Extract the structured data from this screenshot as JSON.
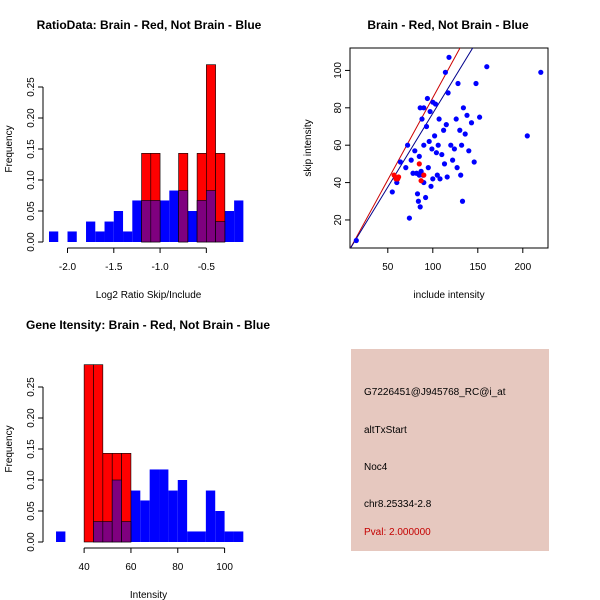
{
  "colors": {
    "red": "#ff0000",
    "blue": "#0000ff",
    "overlap": "#7f007f",
    "ref_red": "#cc0000",
    "ref_blue": "#00008b",
    "info_bg": "#e6c8bf",
    "pval": "#c40000"
  },
  "info_panel": {
    "probe_id": "G7226451@J945768_RC@i_at",
    "event_type": "altTxStart",
    "gene": "Noc4",
    "location": "chr8.25334-2.8",
    "pval": "Pval: 2.000000"
  },
  "chart_data": [
    {
      "type": "bar",
      "id": "ratio-hist",
      "title": "RatioData: Brain - Red, Not Brain - Blue",
      "xlabel": "Log2 Ratio Skip/Include",
      "ylabel": "Frequency",
      "xlim": [
        -2.2,
        -0.05
      ],
      "ylim": [
        0,
        0.3
      ],
      "xticks": [
        -2.0,
        -1.5,
        -1.0,
        -0.5
      ],
      "xtick_labels": [
        "-2.0",
        "-1.5",
        "-1.0",
        "-0.5"
      ],
      "yticks": [
        0,
        0.05,
        0.1,
        0.15,
        0.2,
        0.25
      ],
      "ytick_labels": [
        "0.00",
        "0.05",
        "0.10",
        "0.15",
        "0.20",
        "0.25"
      ],
      "bin_width": 0.1,
      "series": [
        {
          "name": "Not Brain",
          "color": "blue",
          "bins": [
            {
              "x0": -2.2,
              "v": 0.017
            },
            {
              "x0": -2.0,
              "v": 0.017
            },
            {
              "x0": -1.8,
              "v": 0.033
            },
            {
              "x0": -1.7,
              "v": 0.017
            },
            {
              "x0": -1.6,
              "v": 0.033
            },
            {
              "x0": -1.5,
              "v": 0.05
            },
            {
              "x0": -1.4,
              "v": 0.017
            },
            {
              "x0": -1.3,
              "v": 0.067
            },
            {
              "x0": -1.2,
              "v": 0.067
            },
            {
              "x0": -1.1,
              "v": 0.067
            },
            {
              "x0": -1.0,
              "v": 0.067
            },
            {
              "x0": -0.9,
              "v": 0.083
            },
            {
              "x0": -0.8,
              "v": 0.083
            },
            {
              "x0": -0.7,
              "v": 0.05
            },
            {
              "x0": -0.6,
              "v": 0.067
            },
            {
              "x0": -0.5,
              "v": 0.083
            },
            {
              "x0": -0.4,
              "v": 0.033
            },
            {
              "x0": -0.3,
              "v": 0.05
            },
            {
              "x0": -0.2,
              "v": 0.067
            }
          ]
        },
        {
          "name": "Brain",
          "color": "red",
          "bins": [
            {
              "x0": -1.2,
              "v": 0.143
            },
            {
              "x0": -1.1,
              "v": 0.143
            },
            {
              "x0": -0.8,
              "v": 0.143
            },
            {
              "x0": -0.6,
              "v": 0.143
            },
            {
              "x0": -0.5,
              "v": 0.286
            },
            {
              "x0": -0.4,
              "v": 0.143
            }
          ]
        }
      ]
    },
    {
      "type": "scatter",
      "id": "intensity-scatter",
      "title": "Brain - Red, Not Brain - Blue",
      "xlabel": "include intensity",
      "ylabel": "skip intensity",
      "xlim": [
        8,
        228
      ],
      "ylim": [
        5,
        112
      ],
      "xticks": [
        50,
        100,
        150,
        200
      ],
      "xtick_labels": [
        "50",
        "100",
        "150",
        "200"
      ],
      "yticks": [
        20,
        40,
        60,
        80,
        100
      ],
      "ytick_labels": [
        "20",
        "40",
        "60",
        "80",
        "100"
      ],
      "series": [
        {
          "name": "Not Brain",
          "color": "blue",
          "points": [
            [
              15,
              9
            ],
            [
              55,
              35
            ],
            [
              60,
              40
            ],
            [
              64,
              51
            ],
            [
              70,
              48
            ],
            [
              72,
              60
            ],
            [
              74,
              21
            ],
            [
              76,
              52
            ],
            [
              78,
              45
            ],
            [
              80,
              57
            ],
            [
              82,
              45
            ],
            [
              83,
              34
            ],
            [
              84,
              30
            ],
            [
              85,
              44
            ],
            [
              85,
              54
            ],
            [
              86,
              27
            ],
            [
              86,
              80
            ],
            [
              87,
              46
            ],
            [
              88,
              74
            ],
            [
              89,
              44
            ],
            [
              90,
              40
            ],
            [
              90,
              60
            ],
            [
              90,
              80
            ],
            [
              92,
              32
            ],
            [
              93,
              70
            ],
            [
              94,
              85
            ],
            [
              95,
              48
            ],
            [
              96,
              62
            ],
            [
              97,
              78
            ],
            [
              98,
              38
            ],
            [
              99,
              58
            ],
            [
              100,
              83
            ],
            [
              100,
              42
            ],
            [
              102,
              65
            ],
            [
              103,
              82
            ],
            [
              104,
              56
            ],
            [
              105,
              44
            ],
            [
              106,
              60
            ],
            [
              107,
              74
            ],
            [
              108,
              42
            ],
            [
              110,
              55
            ],
            [
              112,
              68
            ],
            [
              113,
              50
            ],
            [
              114,
              99
            ],
            [
              115,
              71
            ],
            [
              116,
              43
            ],
            [
              117,
              88
            ],
            [
              118,
              107
            ],
            [
              120,
              60
            ],
            [
              122,
              52
            ],
            [
              124,
              58
            ],
            [
              126,
              74
            ],
            [
              127,
              48
            ],
            [
              128,
              93
            ],
            [
              130,
              68
            ],
            [
              131,
              44
            ],
            [
              132,
              60
            ],
            [
              133,
              30
            ],
            [
              134,
              80
            ],
            [
              136,
              66
            ],
            [
              138,
              76
            ],
            [
              140,
              57
            ],
            [
              143,
              72
            ],
            [
              146,
              51
            ],
            [
              148,
              93
            ],
            [
              152,
              75
            ],
            [
              160,
              102
            ],
            [
              205,
              65
            ],
            [
              220,
              99
            ]
          ]
        },
        {
          "name": "Brain",
          "color": "red",
          "points": [
            [
              57,
              44
            ],
            [
              59,
              42
            ],
            [
              61,
              42
            ],
            [
              62,
              43
            ],
            [
              85,
              50
            ],
            [
              87,
              41
            ],
            [
              90,
              44
            ]
          ]
        }
      ],
      "ref_lines": [
        {
          "name": "Brain fit",
          "color": "ref_red",
          "x": [
            8,
            228
          ],
          "y": [
            4.5,
            198
          ]
        },
        {
          "name": "Not Brain fit",
          "color": "ref_blue",
          "x": [
            8,
            228
          ],
          "y": [
            4.5,
            178
          ]
        }
      ]
    },
    {
      "type": "bar",
      "id": "gene-hist",
      "title": "Gene Itensity: Brain - Red, Not Brain - Blue",
      "xlabel": "Intensity",
      "ylabel": "Frequency",
      "xlim": [
        25,
        110
      ],
      "ylim": [
        0,
        0.3
      ],
      "xticks": [
        40,
        60,
        80,
        100
      ],
      "xtick_labels": [
        "40",
        "60",
        "80",
        "100"
      ],
      "yticks": [
        0,
        0.05,
        0.1,
        0.15,
        0.2,
        0.25
      ],
      "ytick_labels": [
        "0.00",
        "0.05",
        "0.10",
        "0.15",
        "0.20",
        "0.25"
      ],
      "bin_width": 4,
      "series": [
        {
          "name": "Not Brain",
          "color": "blue",
          "bins": [
            {
              "x0": 28,
              "v": 0.017
            },
            {
              "x0": 44,
              "v": 0.033
            },
            {
              "x0": 48,
              "v": 0.033
            },
            {
              "x0": 52,
              "v": 0.1
            },
            {
              "x0": 56,
              "v": 0.033
            },
            {
              "x0": 60,
              "v": 0.083
            },
            {
              "x0": 64,
              "v": 0.067
            },
            {
              "x0": 68,
              "v": 0.117
            },
            {
              "x0": 72,
              "v": 0.117
            },
            {
              "x0": 76,
              "v": 0.083
            },
            {
              "x0": 80,
              "v": 0.1
            },
            {
              "x0": 84,
              "v": 0.017
            },
            {
              "x0": 88,
              "v": 0.017
            },
            {
              "x0": 92,
              "v": 0.083
            },
            {
              "x0": 96,
              "v": 0.05
            },
            {
              "x0": 100,
              "v": 0.017
            },
            {
              "x0": 104,
              "v": 0.017
            }
          ]
        },
        {
          "name": "Brain",
          "color": "red",
          "bins": [
            {
              "x0": 40,
              "v": 0.286
            },
            {
              "x0": 44,
              "v": 0.286
            },
            {
              "x0": 48,
              "v": 0.143
            },
            {
              "x0": 52,
              "v": 0.143
            },
            {
              "x0": 56,
              "v": 0.143
            }
          ]
        }
      ]
    }
  ]
}
